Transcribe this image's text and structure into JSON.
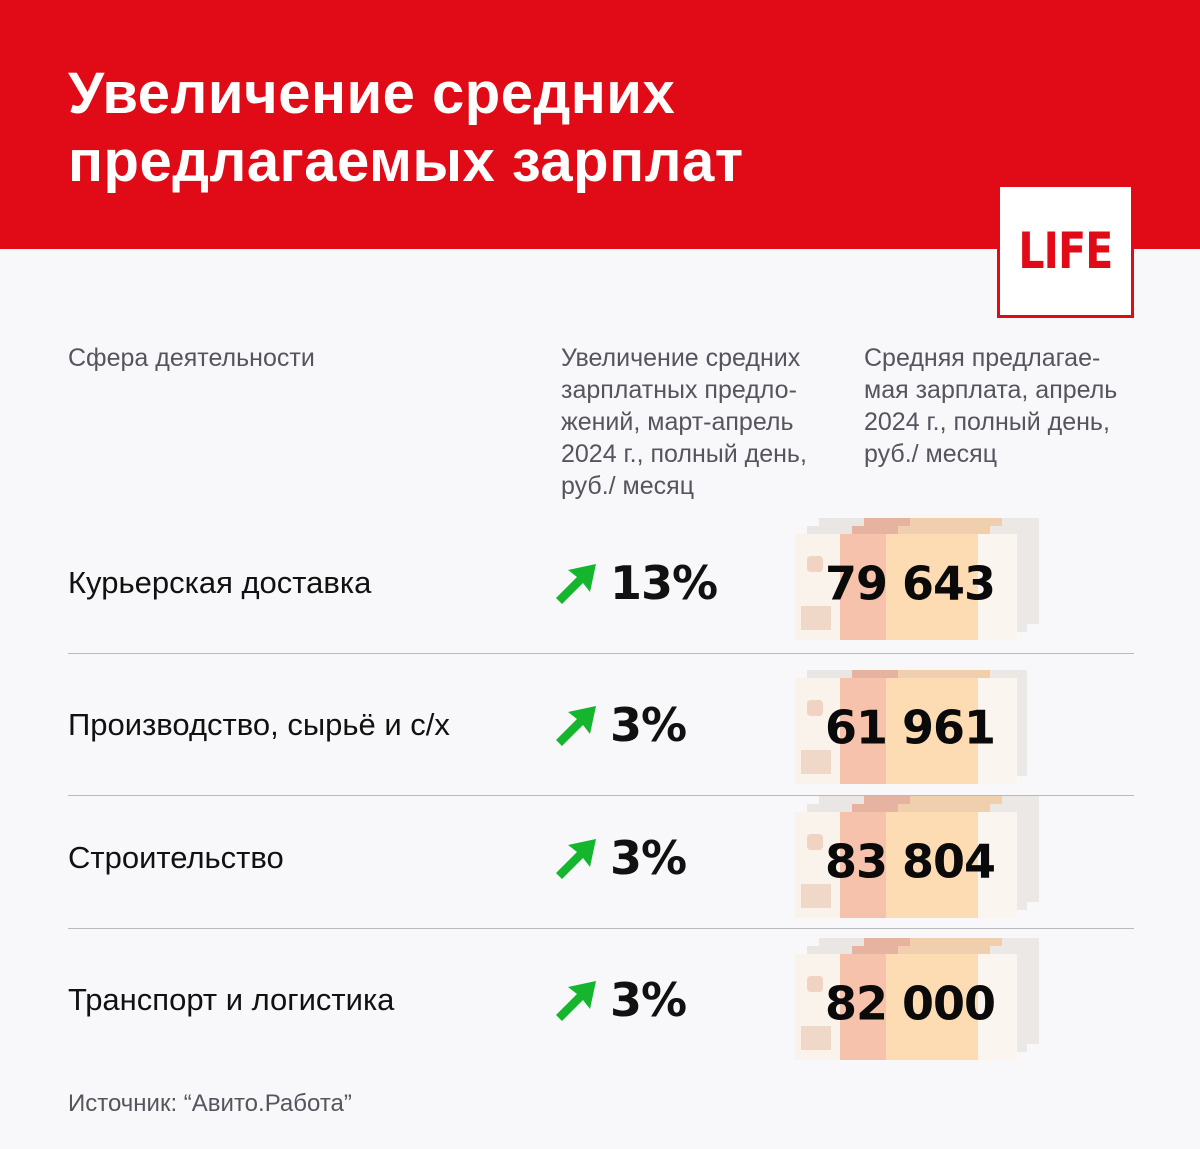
{
  "header": {
    "title_lines": [
      "Увеличение средних",
      "предлагаемых зарплат"
    ],
    "background_color": "#e00b16"
  },
  "logo": {
    "text": "LIFE",
    "color": "#e00b16"
  },
  "columns": {
    "sector": {
      "lines": [
        "Сфера деятельности"
      ]
    },
    "growth": {
      "lines": [
        "Увеличение средних",
        "зарплатных предло-",
        "жений, март-апрель",
        "2024 г., полный день,",
        "руб./ месяц"
      ]
    },
    "salary": {
      "lines": [
        "Средняя предлагае-",
        "мая зарплата, апрель",
        "2024 г., полный день,",
        "руб./ месяц"
      ]
    }
  },
  "rows": [
    {
      "sector": "Курьерская доставка",
      "growth": "13%",
      "trend": "up",
      "salary": "79 643",
      "note_layers": 3
    },
    {
      "sector": "Производство, сырьё и с/х",
      "growth": "3%",
      "trend": "up",
      "salary": "61 961",
      "note_layers": 2
    },
    {
      "sector": "Строительство",
      "growth": "3%",
      "trend": "up",
      "salary": "83 804",
      "note_layers": 3
    },
    {
      "sector": "Транспорт и логистика",
      "growth": "3%",
      "trend": "up",
      "salary": "82 000",
      "note_layers": 3
    }
  ],
  "icons": {
    "trend_up": "arrow-up-right-icon",
    "banknote": "banknote-stack-icon"
  },
  "colors": {
    "arrow": "#15b52e",
    "divider": "#b9b9bf"
  },
  "source": "Источник: “Авито.Работа”",
  "chart_data": {
    "type": "table",
    "title": "Увеличение средних предлагаемых зарплат",
    "columns": [
      "Сфера деятельности",
      "Увеличение средних зарплатных предложений, март-апрель 2024 г., полный день, руб./ месяц",
      "Средняя предлагаемая зарплата, апрель 2024 г., полный день, руб./ месяц"
    ],
    "categories": [
      "Курьерская доставка",
      "Производство, сырьё и с/х",
      "Строительство",
      "Транспорт и логистика"
    ],
    "series": [
      {
        "name": "Увеличение, %",
        "values": [
          13,
          3,
          3,
          3
        ]
      },
      {
        "name": "Средняя предлагаемая зарплата, руб./месяц",
        "values": [
          79643,
          61961,
          83804,
          82000
        ]
      }
    ],
    "source": "Авито.Работа"
  }
}
